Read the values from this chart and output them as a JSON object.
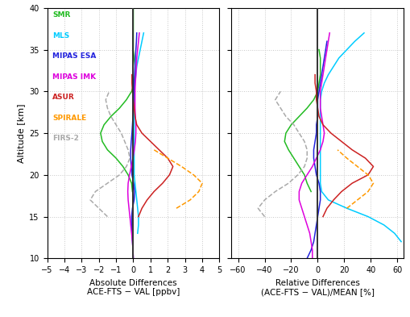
{
  "ylabel": "Altitude [km]",
  "xlabel_left": "Absolute Differences\nACE-FTS − VAL [ppbv]",
  "xlabel_right": "Relative Differences\n(ACE-FTS − VAL)/MEAN [%]",
  "ylim": [
    10,
    40
  ],
  "xlim_left": [
    -5,
    5
  ],
  "xlim_right": [
    -65,
    65
  ],
  "xticks_left": [
    -5,
    -4,
    -3,
    -2,
    -1,
    0,
    1,
    2,
    3,
    4,
    5
  ],
  "xticks_right": [
    -60,
    -40,
    -20,
    0,
    20,
    40,
    60
  ],
  "yticks": [
    10,
    15,
    20,
    25,
    30,
    35,
    40
  ],
  "background_color": "#ffffff",
  "grid_color": "#c8c8c8",
  "instruments": [
    "SMR",
    "MLS",
    "MIPAS ESA",
    "MIPAS IMK",
    "ASUR",
    "SPIRALE",
    "FIRS-2"
  ],
  "colors": {
    "SMR": "#22bb22",
    "MLS": "#00ccff",
    "MIPAS ESA": "#2222dd",
    "MIPAS IMK": "#dd00dd",
    "ASUR": "#cc2222",
    "SPIRALE": "#ff9900",
    "FIRS-2": "#aaaaaa"
  },
  "linestyles": {
    "SMR": "-",
    "MLS": "-",
    "MIPAS ESA": "-",
    "MIPAS IMK": "-",
    "ASUR": "-",
    "SPIRALE": "--",
    "FIRS-2": "--"
  },
  "abs_data": {
    "SMR": {
      "alt": [
        18,
        19,
        20,
        21,
        22,
        23,
        24,
        25,
        26,
        27,
        28,
        29,
        30,
        31,
        32,
        33,
        34,
        35,
        36,
        37,
        38,
        39,
        40
      ],
      "val": [
        -0.05,
        -0.1,
        -0.3,
        -0.6,
        -1.0,
        -1.5,
        -1.8,
        -1.9,
        -1.7,
        -1.3,
        -0.8,
        -0.4,
        -0.1,
        0.05,
        0.1,
        0.1,
        0.05,
        0.0,
        0.0,
        0.0,
        0.0,
        0.0,
        0.0
      ]
    },
    "MLS": {
      "alt": [
        13,
        14,
        15,
        16,
        17,
        18,
        19,
        20,
        21,
        22,
        23,
        24,
        25,
        26,
        27,
        28,
        29,
        30,
        31,
        32,
        33,
        34,
        35,
        36,
        37
      ],
      "val": [
        0.25,
        0.3,
        0.3,
        0.25,
        0.2,
        0.15,
        0.1,
        0.05,
        0.05,
        0.05,
        0.05,
        0.05,
        0.05,
        0.05,
        0.05,
        0.05,
        0.05,
        0.05,
        0.1,
        0.15,
        0.2,
        0.3,
        0.4,
        0.5,
        0.6
      ]
    },
    "MIPAS ESA": {
      "alt": [
        10,
        11,
        12,
        13,
        14,
        15,
        16,
        17,
        18,
        19,
        20,
        21,
        22,
        23,
        24,
        25,
        26,
        27,
        28,
        29,
        30,
        31,
        32,
        33,
        34,
        35,
        36,
        37
      ],
      "val": [
        0.0,
        -0.02,
        -0.05,
        -0.08,
        -0.1,
        -0.1,
        -0.05,
        0.05,
        0.08,
        0.02,
        -0.08,
        -0.12,
        -0.15,
        -0.15,
        -0.12,
        -0.08,
        -0.05,
        -0.02,
        0.0,
        0.02,
        0.03,
        0.05,
        0.08,
        0.1,
        0.12,
        0.15,
        0.18,
        0.2
      ]
    },
    "MIPAS IMK": {
      "alt": [
        10,
        11,
        12,
        13,
        14,
        15,
        16,
        17,
        18,
        19,
        20,
        21,
        22,
        23,
        24,
        25,
        26,
        27,
        28,
        29,
        30,
        31,
        32,
        33,
        34,
        35,
        36,
        37
      ],
      "val": [
        0.0,
        -0.02,
        -0.05,
        -0.1,
        -0.15,
        -0.2,
        -0.25,
        -0.3,
        -0.32,
        -0.3,
        -0.22,
        -0.12,
        -0.02,
        0.06,
        0.12,
        0.15,
        0.15,
        0.12,
        0.1,
        0.1,
        0.1,
        0.12,
        0.15,
        0.18,
        0.2,
        0.25,
        0.3,
        0.35
      ]
    },
    "ASUR": {
      "alt": [
        15,
        16,
        17,
        18,
        19,
        20,
        21,
        22,
        23,
        24,
        25,
        26,
        27,
        28,
        29,
        30,
        31,
        32
      ],
      "val": [
        0.3,
        0.5,
        0.8,
        1.2,
        1.7,
        2.1,
        2.3,
        2.0,
        1.5,
        1.0,
        0.5,
        0.2,
        0.1,
        0.05,
        0.0,
        -0.05,
        -0.08,
        -0.08
      ]
    },
    "SPIRALE": {
      "alt": [
        16,
        17,
        18,
        19,
        20,
        21,
        22,
        23
      ],
      "val": [
        2.5,
        3.3,
        3.8,
        4.0,
        3.5,
        2.8,
        2.0,
        1.2
      ]
    },
    "FIRS-2": {
      "alt": [
        15,
        16,
        17,
        18,
        19,
        20,
        21,
        22,
        23,
        24,
        25,
        26,
        27,
        28,
        29,
        30
      ],
      "val": [
        -1.5,
        -2.0,
        -2.5,
        -2.2,
        -1.5,
        -0.8,
        -0.4,
        -0.2,
        -0.3,
        -0.5,
        -0.7,
        -1.0,
        -1.3,
        -1.5,
        -1.6,
        -1.4
      ]
    }
  },
  "rel_data": {
    "SMR": {
      "alt": [
        18,
        19,
        20,
        21,
        22,
        23,
        24,
        25,
        26,
        27,
        28,
        29,
        30,
        31,
        32,
        33,
        34,
        35
      ],
      "val": [
        -5,
        -8,
        -10,
        -14,
        -18,
        -22,
        -25,
        -24,
        -20,
        -14,
        -8,
        -3,
        0,
        1,
        2,
        2,
        2,
        1
      ]
    },
    "MLS": {
      "alt": [
        12,
        13,
        14,
        15,
        16,
        17,
        18,
        19,
        20,
        21,
        22,
        23,
        24,
        25,
        26,
        27,
        28,
        29,
        30,
        31,
        32,
        33,
        34,
        35,
        36,
        37
      ],
      "val": [
        63,
        58,
        50,
        38,
        22,
        8,
        3,
        2,
        2,
        2,
        2,
        2,
        2,
        2,
        2,
        2,
        2,
        2,
        3,
        5,
        8,
        12,
        16,
        22,
        28,
        35
      ]
    },
    "MIPAS ESA": {
      "alt": [
        10,
        11,
        12,
        13,
        14,
        15,
        16,
        17,
        18,
        19,
        20,
        21,
        22,
        23,
        24,
        25,
        26,
        27,
        28,
        29,
        30,
        31,
        32,
        33,
        34,
        35,
        36
      ],
      "val": [
        -8,
        -5,
        -3,
        -2,
        -1,
        0,
        1,
        2,
        2,
        1,
        -1,
        -2,
        -3,
        -3,
        -2,
        -1,
        -1,
        0,
        0,
        0,
        1,
        2,
        3,
        4,
        5,
        6,
        7
      ]
    },
    "MIPAS IMK": {
      "alt": [
        10,
        11,
        12,
        13,
        14,
        15,
        16,
        17,
        18,
        19,
        20,
        21,
        22,
        23,
        24,
        25,
        26,
        27,
        28,
        29,
        30,
        31,
        32,
        33,
        34,
        35,
        36,
        37
      ],
      "val": [
        -4,
        -4,
        -5,
        -6,
        -8,
        -10,
        -12,
        -14,
        -14,
        -12,
        -8,
        -4,
        -1,
        2,
        4,
        5,
        4,
        3,
        2,
        2,
        2,
        3,
        4,
        5,
        6,
        7,
        8,
        9
      ]
    },
    "ASUR": {
      "alt": [
        15,
        16,
        17,
        18,
        19,
        20,
        21,
        22,
        23,
        24,
        25,
        26,
        27,
        28,
        29,
        30,
        31,
        32
      ],
      "val": [
        4,
        7,
        12,
        18,
        26,
        38,
        42,
        36,
        26,
        18,
        10,
        4,
        1,
        0,
        -1,
        -1,
        -2,
        -2
      ]
    },
    "SPIRALE": {
      "alt": [
        16,
        17,
        18,
        19,
        20,
        21,
        22,
        23
      ],
      "val": [
        22,
        30,
        38,
        42,
        38,
        30,
        22,
        15
      ]
    },
    "FIRS-2": {
      "alt": [
        15,
        16,
        17,
        18,
        19,
        20,
        21,
        22,
        23,
        24,
        25,
        26,
        27,
        28,
        29,
        30
      ],
      "val": [
        -40,
        -45,
        -40,
        -32,
        -22,
        -15,
        -10,
        -8,
        -8,
        -10,
        -14,
        -18,
        -24,
        -28,
        -32,
        -28
      ]
    }
  },
  "legend_items": [
    {
      "name": "SMR",
      "color": "#22bb22",
      "ls": "-"
    },
    {
      "name": "MLS",
      "color": "#00ccff",
      "ls": "-"
    },
    {
      "name": "MIPAS ESA",
      "color": "#2222dd",
      "ls": "-"
    },
    {
      "name": "MIPAS IMK",
      "color": "#dd00dd",
      "ls": "-"
    },
    {
      "name": "ASUR",
      "color": "#cc2222",
      "ls": "-"
    },
    {
      "name": "SPIRALE",
      "color": "#ff9900",
      "ls": "--"
    },
    {
      "name": "FIRS-2",
      "color": "#aaaaaa",
      "ls": "--"
    }
  ]
}
